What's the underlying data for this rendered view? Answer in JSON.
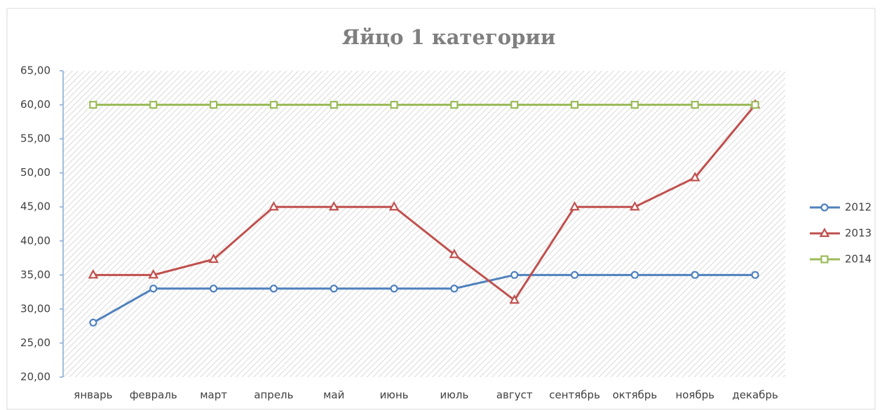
{
  "chart_data": {
    "type": "line",
    "title": "Яйцо 1 категории",
    "categories": [
      "январь",
      "февраль",
      "март",
      "апрель",
      "май",
      "июнь",
      "июль",
      "август",
      "сентябрь",
      "октябрь",
      "ноябрь",
      "декабрь"
    ],
    "series": [
      {
        "name": "2012",
        "color": "#4f81bd",
        "marker": "circle",
        "values": [
          28,
          33,
          33,
          33,
          33,
          33,
          33,
          35,
          35,
          35,
          35,
          35
        ]
      },
      {
        "name": "2013",
        "color": "#c0504d",
        "marker": "triangle",
        "values": [
          35,
          35,
          37.3,
          45,
          45,
          45,
          38,
          31.3,
          45,
          45,
          49.3,
          60
        ]
      },
      {
        "name": "2014",
        "color": "#9bbb59",
        "marker": "square",
        "values": [
          60,
          60,
          60,
          60,
          60,
          60,
          60,
          60,
          60,
          60,
          60,
          60
        ]
      }
    ],
    "ylim": [
      20,
      65
    ],
    "yticks": [
      {
        "value": 20,
        "label": "20,00"
      },
      {
        "value": 25,
        "label": "25,00"
      },
      {
        "value": 30,
        "label": "30,00"
      },
      {
        "value": 35,
        "label": "35,00"
      },
      {
        "value": 40,
        "label": "40,00"
      },
      {
        "value": 45,
        "label": "45,00"
      },
      {
        "value": 50,
        "label": "50,00"
      },
      {
        "value": 55,
        "label": "55,00"
      },
      {
        "value": 60,
        "label": "60,00"
      },
      {
        "value": 65,
        "label": "65,00"
      }
    ],
    "legend": "right"
  }
}
